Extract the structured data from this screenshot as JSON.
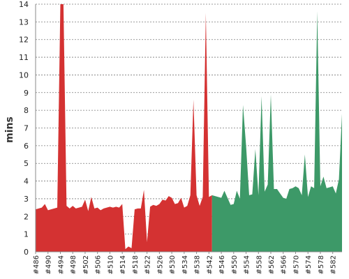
{
  "chart_data": {
    "type": "area",
    "title": "",
    "xlabel": "",
    "ylabel": "mins",
    "ylim": [
      0,
      14
    ],
    "y_ticks": [
      0,
      1,
      2,
      3,
      4,
      5,
      6,
      7,
      8,
      9,
      10,
      11,
      12,
      13,
      14
    ],
    "x_tick_labels": [
      "#486",
      "#490",
      "#494",
      "#498",
      "#502",
      "#506",
      "#510",
      "#514",
      "#518",
      "#522",
      "#526",
      "#530",
      "#534",
      "#538",
      "#542",
      "#546",
      "#550",
      "#554",
      "#558",
      "#562",
      "#566",
      "#570",
      "#574",
      "#578",
      "#582"
    ],
    "grid": true,
    "series": [
      {
        "color": "#d43232",
        "x": [
          486,
          487,
          488,
          489,
          490,
          491,
          492,
          493,
          494,
          495,
          496,
          497,
          498,
          499,
          500,
          501,
          502,
          503,
          504,
          505,
          506,
          507,
          508,
          509,
          510,
          511,
          512,
          513,
          514,
          515,
          516,
          517,
          518,
          519,
          520,
          521,
          522,
          523,
          524,
          525,
          526,
          527,
          528,
          529,
          530,
          531,
          532,
          533,
          534,
          535,
          536,
          537,
          538,
          539,
          540,
          541,
          542,
          543
        ],
        "values": [
          2.4,
          2.45,
          2.5,
          2.7,
          2.35,
          2.4,
          2.45,
          2.5,
          14.3,
          14.3,
          2.6,
          2.45,
          2.6,
          2.45,
          2.5,
          2.55,
          2.95,
          2.3,
          3.1,
          2.45,
          2.5,
          2.35,
          2.45,
          2.5,
          2.55,
          2.5,
          2.55,
          2.5,
          2.7,
          0.15,
          0.3,
          0.2,
          2.4,
          2.45,
          2.45,
          3.5,
          0.55,
          2.55,
          2.65,
          2.6,
          2.7,
          2.95,
          2.9,
          3.15,
          3.05,
          2.7,
          2.75,
          3.05,
          2.5,
          2.6,
          3.2,
          8.6,
          3.2,
          2.6,
          3.1,
          13.5,
          3.1,
          3.2
        ]
      },
      {
        "color": "#3d9968",
        "x": [
          543,
          544,
          545,
          546,
          547,
          548,
          549,
          550,
          551,
          552,
          553,
          554,
          555,
          556,
          557,
          558,
          559,
          560,
          561,
          562,
          563,
          564,
          565,
          566,
          567,
          568,
          569,
          570,
          571,
          572,
          573,
          574,
          575,
          576,
          577,
          578,
          579,
          580,
          581,
          582,
          583,
          584,
          585
        ],
        "values": [
          3.2,
          3.15,
          3.1,
          3.05,
          3.45,
          3.05,
          2.65,
          2.7,
          3.45,
          3.0,
          8.3,
          6.0,
          3.2,
          3.25,
          5.8,
          3.2,
          8.8,
          3.4,
          3.8,
          8.9,
          3.55,
          3.55,
          3.3,
          3.05,
          3.0,
          3.55,
          3.6,
          3.7,
          3.6,
          3.2,
          5.5,
          3.1,
          3.7,
          3.6,
          13.6,
          3.7,
          4.25,
          3.6,
          3.65,
          3.7,
          3.3,
          4.1,
          7.8
        ]
      }
    ]
  }
}
